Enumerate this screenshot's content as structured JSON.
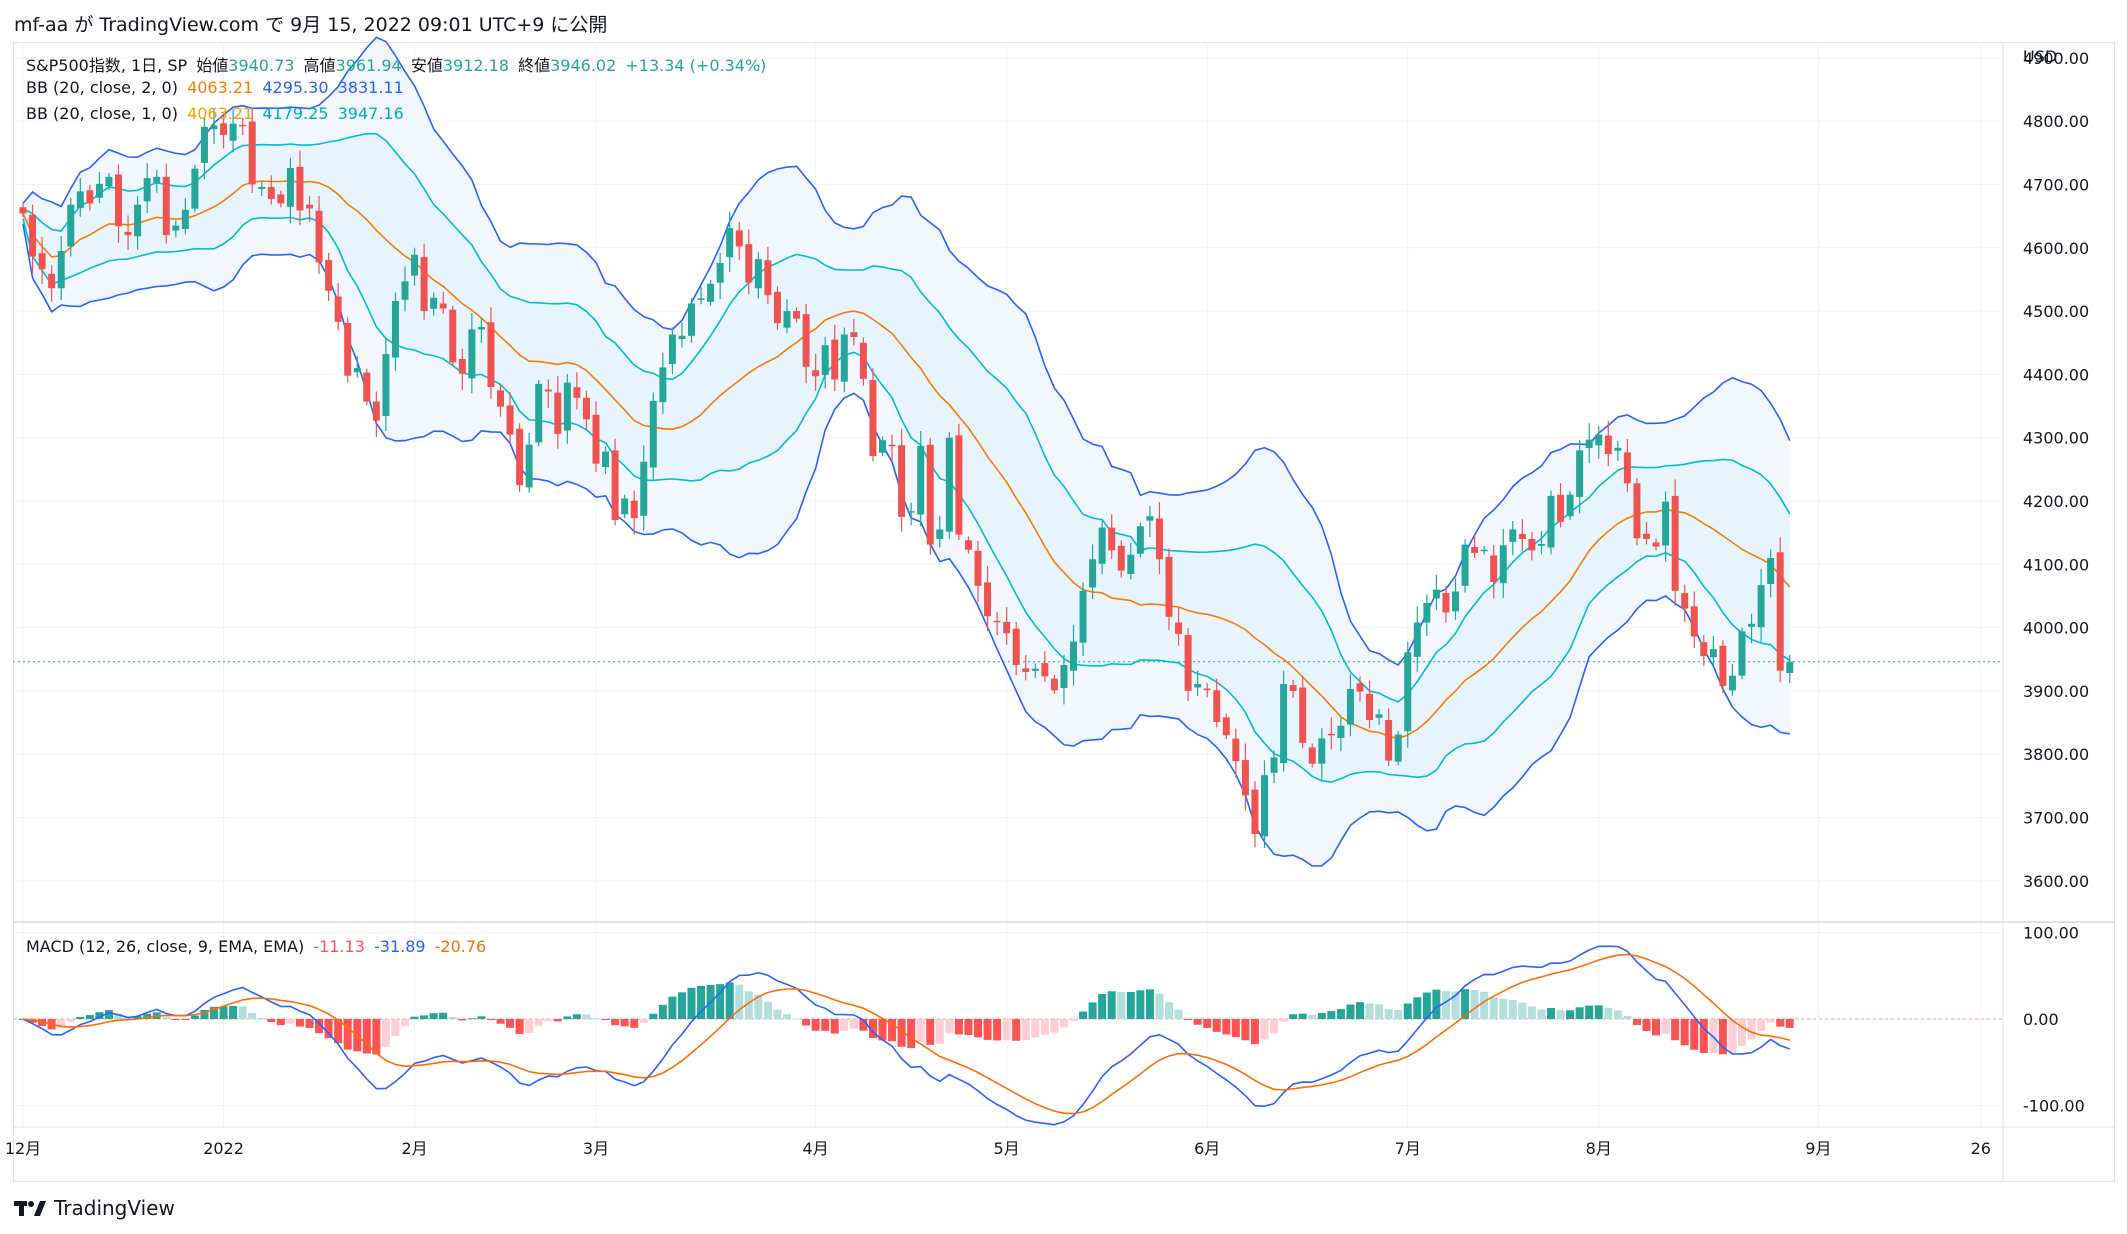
{
  "header": {
    "publish_line": "mf-aa が TradingView.com で 9月 15, 2022 09:01 UTC+9 に公開"
  },
  "legend": {
    "symbol": "S&P500指数, 1日, SP",
    "open_label": "始値",
    "open": "3940.73",
    "high_label": "高値",
    "high": "3961.94",
    "low_label": "安値",
    "low": "3912.18",
    "close_label": "終値",
    "close": "3946.02",
    "change": "+13.34 (+0.34%)",
    "bb2_name": "BB (20, close, 2, 0)",
    "bb2_basis": "4063.21",
    "bb2_upper": "4295.30",
    "bb2_lower": "3831.11",
    "bb1_name": "BB (20, close, 1, 0)",
    "bb1_basis": "4063.21",
    "bb1_upper": "4179.25",
    "bb1_lower": "3947.16",
    "macd_name": "MACD (12, 26, close, 9, EMA, EMA)",
    "macd_hist": "-11.13",
    "macd_line": "-31.89",
    "macd_signal": "-20.76"
  },
  "brand": {
    "name": "TradingView"
  },
  "colors": {
    "up": "#26a69a",
    "down": "#ef5350",
    "basis": "#f57c00",
    "bb2": "#2962ff",
    "bb1": "#00bcd4",
    "fill": "#e3f2fd",
    "hist_up_strong": "#26a69a",
    "hist_up_weak": "#b2dfdb",
    "hist_down_strong": "#ff5252",
    "hist_down_weak": "#ffcdd2",
    "macd": "#2962ff",
    "signal": "#ff6d00"
  },
  "chart_data": [
    {
      "type": "candlestick",
      "title": "S&P500指数, 1日, SP",
      "ylabel": "USD",
      "y_ticks": [
        "3600.00",
        "3700.00",
        "3800.00",
        "3900.00",
        "4000.00",
        "4100.00",
        "4200.00",
        "4300.00",
        "4400.00",
        "4500.00",
        "4600.00",
        "4700.00",
        "4800.00",
        "4900.00"
      ],
      "ylim": [
        3535,
        4925
      ],
      "x_ticks": [
        {
          "label": "12月",
          "i": 0
        },
        {
          "label": "2022",
          "i": 21
        },
        {
          "label": "2月",
          "i": 41
        },
        {
          "label": "3月",
          "i": 60
        },
        {
          "label": "4月",
          "i": 83
        },
        {
          "label": "5月",
          "i": 103
        },
        {
          "label": "6月",
          "i": 124
        },
        {
          "label": "7月",
          "i": 145
        },
        {
          "label": "8月",
          "i": 165
        },
        {
          "label": "9月",
          "i": 188
        },
        {
          "label": "26",
          "i": 205
        }
      ],
      "last_price": 3946.02,
      "closes": [
        4654,
        4586,
        4566,
        4536,
        4595,
        4668,
        4689,
        4670,
        4701,
        4712,
        4634,
        4620,
        4668,
        4710,
        4712,
        4620,
        4635,
        4660,
        4725,
        4791,
        4793,
        4778,
        4796,
        4794,
        4700,
        4696,
        4677,
        4670,
        4726,
        4659,
        4662,
        4577,
        4532,
        4483,
        4398,
        4410,
        4357,
        4327,
        4432,
        4516,
        4547,
        4589,
        4500,
        4521,
        4504,
        4419,
        4401,
        4471,
        4475,
        4380,
        4349,
        4305,
        4225,
        4289,
        4385,
        4373,
        4306,
        4387,
        4363,
        4329,
        4259,
        4278,
        4170,
        4204,
        4173,
        4262,
        4358,
        4411,
        4463,
        4461,
        4512,
        4520,
        4543,
        4576,
        4631,
        4602,
        4545,
        4582,
        4525,
        4481,
        4500,
        4488,
        4412,
        4397,
        4446,
        4392,
        4463,
        4459,
        4393,
        4271,
        4296,
        4288,
        4175,
        4184,
        4287,
        4131,
        4155,
        4300,
        4147,
        4123,
        4066,
        4018,
        4009,
        3991,
        3941,
        3930,
        3935,
        3923,
        3901,
        3941,
        3978,
        4058,
        4108,
        4158,
        4122,
        4090,
        4115,
        4160,
        4176,
        4108,
        4017,
        3990,
        3900,
        3911,
        3901,
        3851,
        3830,
        3789,
        3735,
        3674,
        3767,
        3795,
        3911,
        3900,
        3818,
        3785,
        3825,
        3831,
        3845,
        3903,
        3899,
        3854,
        3863,
        3790,
        3831,
        3961,
        4008,
        4039,
        4060,
        4024,
        4057,
        4131,
        4118,
        4123,
        4072,
        4130,
        4155,
        4140,
        4122,
        4132,
        4208,
        4167,
        4210,
        4280,
        4297,
        4305,
        4274,
        4284,
        4228,
        4141,
        4140,
        4128,
        4199,
        4058,
        4030,
        3986,
        3955,
        3966,
        3908,
        3924,
        3994,
        4006,
        4067,
        4110,
        3932,
        3946
      ]
    },
    {
      "type": "bar",
      "title": "MACD (12, 26, close, 9, EMA, EMA)",
      "y_ticks": [
        "100.00",
        "0.00",
        "-100.00"
      ],
      "ylim": [
        -125,
        110
      ]
    }
  ]
}
